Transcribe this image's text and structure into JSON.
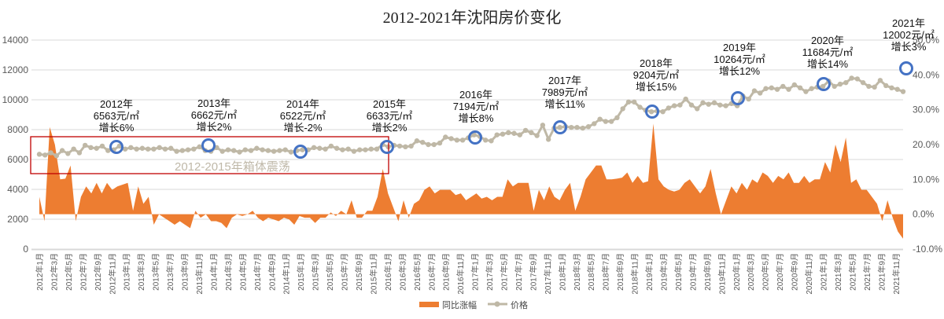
{
  "chart_data": {
    "type": "combo-area-line",
    "title": "2012-2021年沈阳房价变化",
    "xlabel": "",
    "ylabel_left": "",
    "ylabel_right": "",
    "left_axis": {
      "min": 0,
      "max": 14000,
      "ticks": [
        0,
        2000,
        4000,
        6000,
        8000,
        10000,
        12000,
        14000
      ]
    },
    "right_axis": {
      "min": -10,
      "max": 50,
      "ticks": [
        "-10.0%",
        "0.0%",
        "10.0%",
        "20.0%",
        "30.0%",
        "40.0%",
        "50.0%"
      ],
      "tick_values": [
        -10,
        0,
        10,
        20,
        30,
        40,
        50
      ]
    },
    "grid": true,
    "legend_position": "bottom",
    "x_tick_labels": [
      "2012年1月",
      "2012年3月",
      "2012年5月",
      "2012年7月",
      "2012年9月",
      "2012年11月",
      "2013年1月",
      "2013年3月",
      "2013年5月",
      "2013年7月",
      "2013年9月",
      "2013年11月",
      "2014年1月",
      "2014年3月",
      "2014年5月",
      "2014年7月",
      "2014年9月",
      "2014年11月",
      "2015年1月",
      "2015年3月",
      "2015年5月",
      "2015年7月",
      "2015年9月",
      "2015年11月",
      "2016年1月",
      "2016年3月",
      "2016年5月",
      "2016年7月",
      "2016年9月",
      "2016年11月",
      "2017年1月",
      "2017年3月",
      "2017年5月",
      "2017年7月",
      "2017年9月",
      "2017年11月",
      "2018年1月",
      "2018年3月",
      "2018年5月",
      "2018年7月",
      "2018年9月",
      "2018年11月",
      "2019年1月",
      "2019年3月",
      "2019年5月",
      "2019年7月",
      "2019年9月",
      "2019年11月",
      "2020年1月",
      "2020年3月",
      "2020年5月",
      "2020年7月",
      "2020年9月",
      "2020年11月",
      "2021年1月",
      "2021年3月",
      "2021年5月",
      "2021年7月",
      "2021年9月",
      "2021年11月"
    ],
    "series": [
      {
        "name": "同比涨幅",
        "type": "area",
        "axis": "right",
        "color": "#ED7D31",
        "unit": "%",
        "values": [
          5,
          -2,
          25,
          20,
          10,
          10.2,
          14,
          -2,
          5,
          8,
          6,
          9,
          6,
          9,
          7,
          8,
          8.5,
          9,
          1,
          8,
          3,
          5,
          -3,
          0,
          -1,
          -2,
          -3,
          -2,
          -3,
          -4,
          1,
          -1,
          0,
          -2,
          -2,
          -2.5,
          -4,
          -1,
          0,
          -0.5,
          0,
          1,
          -1,
          -2,
          -1,
          -1.5,
          -2,
          -1,
          -1.5,
          -3,
          -0.5,
          -1,
          -1,
          -2.5,
          -1,
          -1,
          0.5,
          -0.5,
          1,
          0,
          4,
          -1,
          -1,
          1,
          1,
          5,
          13,
          6,
          2,
          -2,
          4,
          -1,
          3,
          4,
          7,
          8,
          6,
          7,
          7,
          7,
          5.5,
          6,
          4,
          5,
          6,
          4.5,
          5,
          4,
          5,
          5,
          10,
          8,
          9,
          9,
          9,
          1,
          7,
          4,
          8,
          5,
          4,
          7,
          9,
          1,
          5,
          10,
          12,
          14,
          14,
          10,
          10,
          10.2,
          10.5,
          12,
          9,
          11,
          9,
          9.5,
          26,
          10,
          8,
          7,
          6.5,
          7,
          9,
          10,
          8,
          6,
          8,
          13,
          6,
          0,
          4,
          8,
          6,
          9,
          7,
          10,
          9,
          12,
          11,
          9,
          11,
          10,
          12,
          9,
          9,
          11,
          9,
          10,
          10,
          15,
          12,
          20,
          15,
          22,
          9,
          10,
          7,
          7,
          5,
          3,
          -2,
          4,
          -1,
          -5,
          -7
        ]
      },
      {
        "name": "价格",
        "type": "line",
        "axis": "left",
        "color": "#BFB8A6",
        "unit": "元/㎡",
        "values": [
          6350,
          6300,
          6450,
          6250,
          6600,
          6400,
          6700,
          6450,
          6950,
          6800,
          6750,
          6900,
          6600,
          6650,
          6900,
          6700,
          6800,
          6700,
          6750,
          6700,
          6700,
          6800,
          6700,
          6750,
          6550,
          6600,
          6650,
          6700,
          6850,
          6600,
          6550,
          6800,
          6550,
          6650,
          6600,
          6500,
          6650,
          6600,
          6750,
          6650,
          6600,
          6550,
          6600,
          6650,
          6500,
          6600,
          6650,
          6650,
          6800,
          6750,
          6700,
          6900,
          6750,
          6650,
          6700,
          6550,
          6650,
          6650,
          6700,
          6700,
          7000,
          6850,
          6950,
          6900,
          6850,
          6900,
          7250,
          7150,
          7000,
          7000,
          7100,
          7500,
          7400,
          7300,
          7300,
          7450,
          7650,
          7550,
          7300,
          7250,
          7650,
          7700,
          7800,
          7750,
          7650,
          7950,
          7800,
          7600,
          8300,
          7350,
          8100,
          8150,
          8200,
          8150,
          8150,
          8100,
          8200,
          8400,
          8700,
          8550,
          8550,
          8800,
          9400,
          9850,
          9850,
          9500,
          9300,
          9200,
          9250,
          9200,
          9450,
          9600,
          9650,
          10050,
          9650,
          9400,
          9800,
          9700,
          9800,
          9650,
          9600,
          9750,
          9600,
          10250,
          10050,
          10600,
          10450,
          10750,
          10800,
          10700,
          10900,
          10700,
          11000,
          10800,
          10550,
          10750,
          10850,
          10900,
          11250,
          10900,
          11050,
          11150,
          11450,
          11400,
          11150,
          10900,
          10850,
          11300,
          10950,
          10800,
          10700,
          10550
        ],
        "note": "Monthly series is approximate, read off the chart."
      }
    ],
    "annotations": [
      {
        "year": "2012年",
        "price": "6563元/㎡",
        "growth": "增长6%",
        "price_value": 6563,
        "growth_value": 6
      },
      {
        "year": "2013年",
        "price": "6662元/㎡",
        "growth": "增长2%",
        "price_value": 6662,
        "growth_value": 2
      },
      {
        "year": "2014年",
        "price": "6522元/㎡",
        "growth": "增长-2%",
        "price_value": 6522,
        "growth_value": -2
      },
      {
        "year": "2015年",
        "price": "6633元/㎡",
        "growth": "增长2%",
        "price_value": 6633,
        "growth_value": 2
      },
      {
        "year": "2016年",
        "price": "7194元/㎡",
        "growth": "增长8%",
        "price_value": 7194,
        "growth_value": 8
      },
      {
        "year": "2017年",
        "price": "7989元/㎡",
        "growth": "增长11%",
        "price_value": 7989,
        "growth_value": 11
      },
      {
        "year": "2018年",
        "price": "9204元/㎡",
        "growth": "增长15%",
        "price_value": 9204,
        "growth_value": 15
      },
      {
        "year": "2019年",
        "price": "10264元/㎡",
        "growth": "增长12%",
        "price_value": 10264,
        "growth_value": 12
      },
      {
        "year": "2020年",
        "price": "11684元/㎡",
        "growth": "增长14%",
        "price_value": 11684,
        "growth_value": 14
      },
      {
        "year": "2021年",
        "price": "12002元/㎡",
        "growth": "增长3%",
        "price_value": 12002,
        "growth_value": 3
      }
    ],
    "box_annotation": {
      "label": "2012-2015年箱体震荡",
      "color": "#C00000"
    }
  },
  "legend": {
    "area_label": "同比涨幅",
    "line_label": "价格"
  },
  "colors": {
    "area": "#ED7D31",
    "line": "#BFB8A6",
    "marker_circle": "#4472C4",
    "box": "#C00000",
    "grid": "#D9D9D9"
  }
}
